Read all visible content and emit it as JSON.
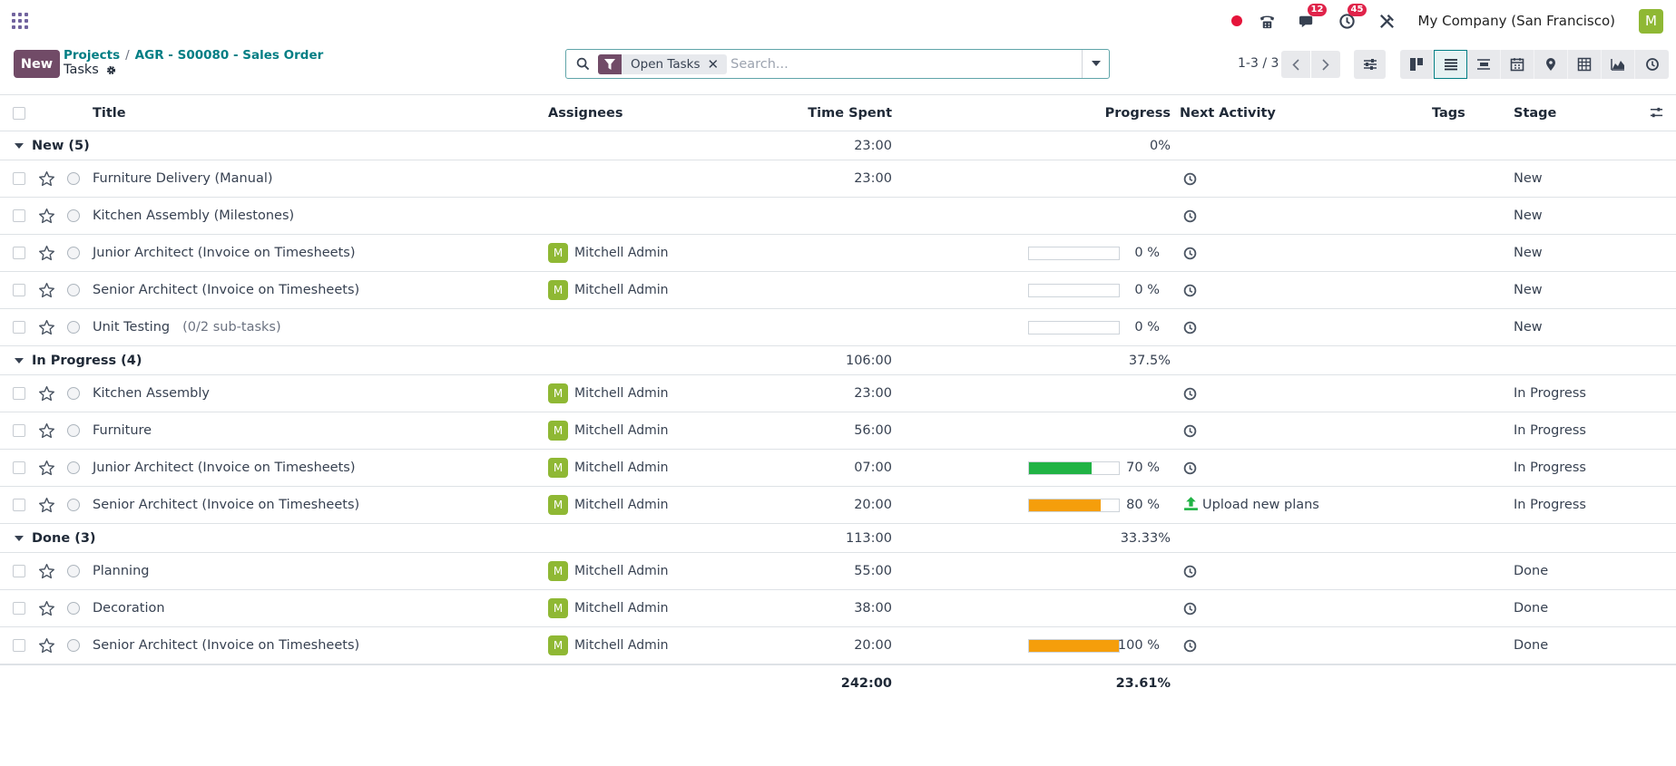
{
  "navbar": {
    "company": "My Company (San Francisco)",
    "user_initial": "M",
    "discuss_badge": "12",
    "activity_badge": "45"
  },
  "control": {
    "new_label": "New",
    "breadcrumb": [
      "Projects",
      "AGR - S00080 - Sales Order"
    ],
    "breadcrumb_sep": "/",
    "title": "Tasks",
    "search_facet": "Open Tasks",
    "search_placeholder": "Search...",
    "pager": "1-3 / 3"
  },
  "columns": {
    "title": "Title",
    "assignees": "Assignees",
    "time_spent": "Time Spent",
    "progress": "Progress",
    "next_activity": "Next Activity",
    "tags": "Tags",
    "stage": "Stage"
  },
  "groups": [
    {
      "label": "New (5)",
      "time": "23:00",
      "progress": "0%",
      "rows": [
        {
          "title": "Furniture Delivery (Manual)",
          "assignee": "",
          "time": "23:00",
          "progress": null,
          "activity": "",
          "stage": "New"
        },
        {
          "title": "Kitchen Assembly (Milestones)",
          "assignee": "",
          "time": "",
          "progress": null,
          "activity": "",
          "stage": "New"
        },
        {
          "title": "Junior Architect (Invoice on Timesheets)",
          "assignee": "Mitchell Admin",
          "time": "",
          "progress": 0,
          "progress_label": "0 %",
          "activity": "",
          "stage": "New"
        },
        {
          "title": "Senior Architect (Invoice on Timesheets)",
          "assignee": "Mitchell Admin",
          "time": "",
          "progress": 0,
          "progress_label": "0 %",
          "activity": "",
          "stage": "New"
        },
        {
          "title": "Unit Testing",
          "subtasks": "(0/2 sub-tasks)",
          "assignee": "",
          "time": "",
          "progress": 0,
          "progress_label": "0 %",
          "activity": "",
          "stage": "New"
        }
      ]
    },
    {
      "label": "In Progress (4)",
      "time": "106:00",
      "progress": "37.5%",
      "rows": [
        {
          "title": "Kitchen Assembly",
          "assignee": "Mitchell Admin",
          "time": "23:00",
          "progress": null,
          "activity": "",
          "stage": "In Progress"
        },
        {
          "title": "Furniture",
          "assignee": "Mitchell Admin",
          "time": "56:00",
          "progress": null,
          "activity": "",
          "stage": "In Progress"
        },
        {
          "title": "Junior Architect (Invoice on Timesheets)",
          "assignee": "Mitchell Admin",
          "time": "07:00",
          "progress": 70,
          "progress_label": "70 %",
          "bar_color": "#21b345",
          "activity": "",
          "stage": "In Progress"
        },
        {
          "title": "Senior Architect (Invoice on Timesheets)",
          "assignee": "Mitchell Admin",
          "time": "20:00",
          "progress": 80,
          "progress_label": "80 %",
          "bar_color": "#f59e0b",
          "activity": "Upload new plans",
          "stage": "In Progress"
        }
      ]
    },
    {
      "label": "Done (3)",
      "time": "113:00",
      "progress": "33.33%",
      "rows": [
        {
          "title": "Planning",
          "assignee": "Mitchell Admin",
          "time": "55:00",
          "progress": null,
          "activity": "",
          "stage": "Done"
        },
        {
          "title": "Decoration",
          "assignee": "Mitchell Admin",
          "time": "38:00",
          "progress": null,
          "activity": "",
          "stage": "Done"
        },
        {
          "title": "Senior Architect (Invoice on Timesheets)",
          "assignee": "Mitchell Admin",
          "time": "20:00",
          "progress": 100,
          "progress_label": "100 %",
          "bar_color": "#f59e0b",
          "activity": "",
          "stage": "Done"
        }
      ]
    }
  ],
  "totals": {
    "time": "242:00",
    "progress": "23.61%"
  }
}
